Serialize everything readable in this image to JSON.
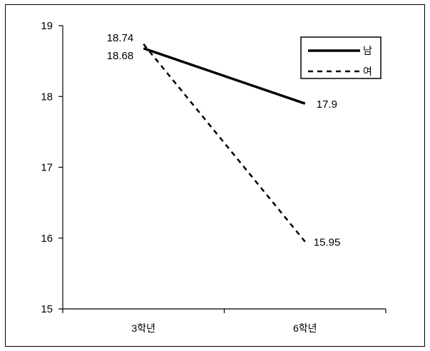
{
  "chart_data": {
    "type": "line",
    "categories": [
      "3학년",
      "6학년"
    ],
    "series": [
      {
        "name": "남",
        "values": [
          18.68,
          17.9
        ],
        "style": "solid",
        "labels": [
          "18.68",
          "17.9"
        ]
      },
      {
        "name": "여",
        "values": [
          18.74,
          15.95
        ],
        "style": "dashed",
        "labels": [
          "18.74",
          "15.95"
        ]
      }
    ],
    "yticks": [
      "15",
      "16",
      "17",
      "18",
      "19"
    ],
    "ylim": [
      15,
      19
    ],
    "title": "",
    "xlabel": "",
    "ylabel": "",
    "grid": false,
    "legend": "top-right",
    "colors": {
      "line": "#000000",
      "background": "#ffffff"
    }
  }
}
